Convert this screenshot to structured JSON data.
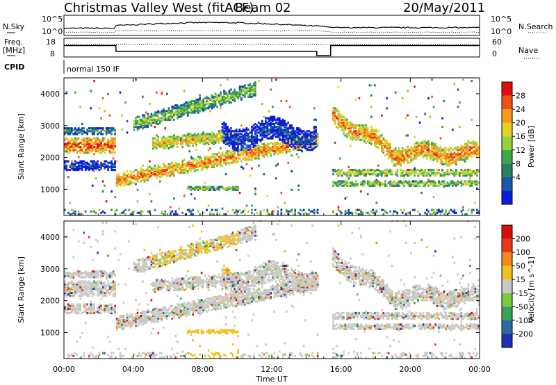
{
  "header": {
    "title": "Christmas Valley West (fitACF)",
    "beam": "Beam 02",
    "date": "20/May/2011"
  },
  "noise_panel": {
    "left_label": "N.Sky",
    "right_label": "N.Search",
    "ticks": [
      "10^5",
      "10^0"
    ]
  },
  "freq_panel": {
    "left_label_1": "Freq.",
    "left_label_2": "[MHz]",
    "left_ticks": [
      "18",
      "8"
    ],
    "right_label": "Nave",
    "right_ticks": [
      "60",
      "0"
    ]
  },
  "cpid": {
    "label": "CPID",
    "program": "normal 150 IF"
  },
  "chart_data": {
    "type": "heatmap",
    "x_axis": {
      "label": "Time UT",
      "range_hours": [
        0,
        24
      ],
      "tick_values": [
        0,
        4,
        8,
        12,
        16,
        20,
        24
      ],
      "tick_labels": [
        "00:00",
        "04:00",
        "08:00",
        "12:00",
        "16:00",
        "20:00",
        "00:00"
      ]
    },
    "data_gap_hours": [
      14.6,
      15.4
    ],
    "power_panel": {
      "ylabel": "Slant Range [km]",
      "yrange": [
        180,
        4500
      ],
      "yticks": [
        1000,
        2000,
        3000,
        4000
      ],
      "colorbar_label": "Power [dB]",
      "colorbar_ticks": [
        "28",
        "24",
        "20",
        "16",
        "12",
        "8",
        "4"
      ],
      "colorbar_colors": [
        "#0a1fd8",
        "#1a58a8",
        "#2a7f62",
        "#3da847",
        "#96d03a",
        "#e8d021",
        "#f59a19",
        "#ec5317",
        "#e01010"
      ]
    },
    "velocity_panel": {
      "ylabel": "Slant Range [km]",
      "yrange": [
        180,
        4500
      ],
      "yticks": [
        1000,
        2000,
        3000,
        4000
      ],
      "colorbar_label": "Velocity [m s^-1]",
      "colorbar_ticks": [
        "200",
        "100",
        "50",
        "15",
        "-15",
        "-50",
        "-100",
        "-200"
      ],
      "colorbar_colors": [
        "#1f2fb0",
        "#2f6a9c",
        "#3aa05a",
        "#7acb3c",
        "#c8c8c4",
        "#f0c020",
        "#f08a18",
        "#e8381a",
        "#d80e0e"
      ]
    }
  }
}
